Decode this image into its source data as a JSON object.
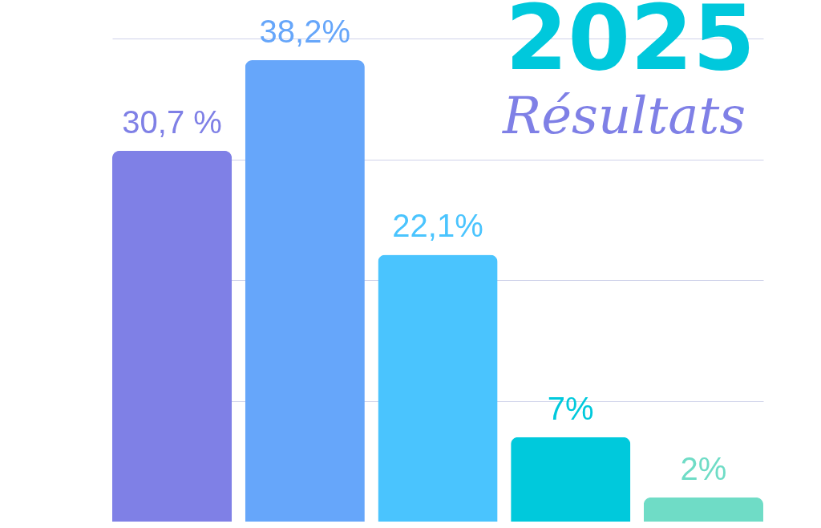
{
  "chart_data": {
    "type": "bar",
    "title": "2025",
    "subtitle": "Résultats",
    "categories": [
      null,
      null,
      null,
      null,
      null
    ],
    "values": [
      30.7,
      38.2,
      22.1,
      7,
      2
    ],
    "colors": [
      "#7f80e6",
      "#66a6fa",
      "#4ac4fe",
      "#00c9dc",
      "#6fdcc6"
    ],
    "value_labels": [
      "30,7 %",
      "38,2%",
      "22,1%",
      "7%",
      "2%"
    ],
    "ylim": [
      0,
      40
    ],
    "yticks": [
      {
        "value": 10,
        "label": null
      },
      {
        "value": 20,
        "label": null
      },
      {
        "value": 30,
        "label": null
      },
      {
        "value": 40,
        "label": null
      }
    ],
    "grid": "y"
  }
}
